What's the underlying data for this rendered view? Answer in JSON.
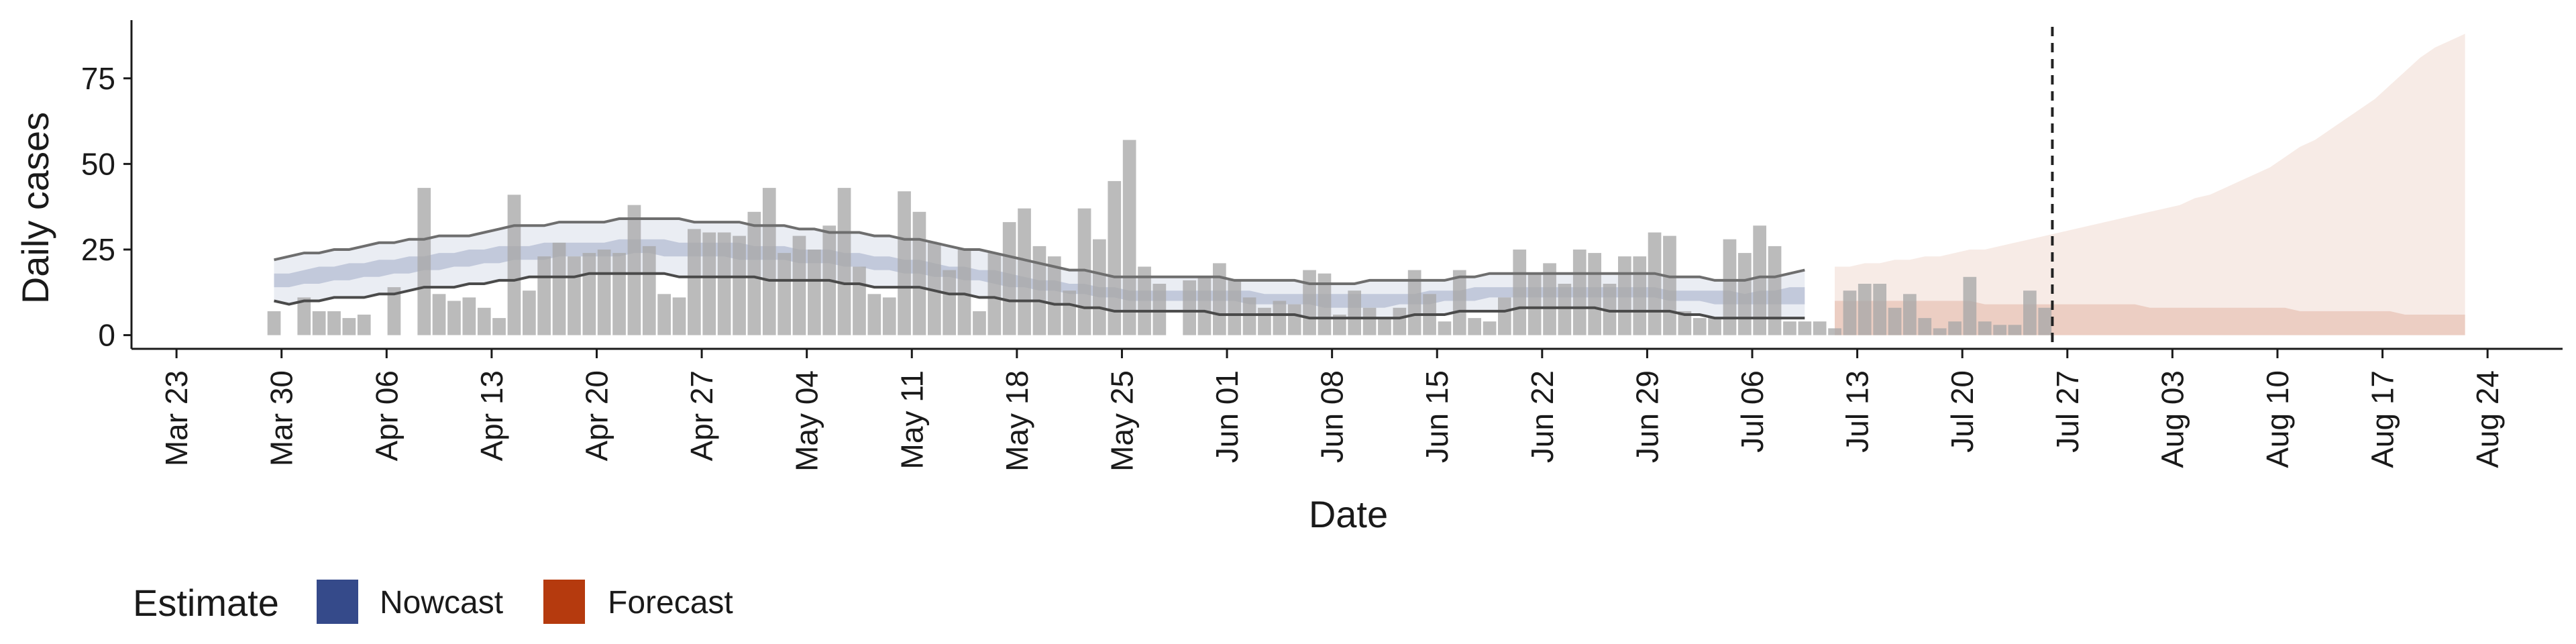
{
  "chart_data": {
    "type": "bar",
    "xlabel": "Date",
    "ylabel": "Daily cases",
    "xlim": [
      "2020-03-20",
      "2020-08-29"
    ],
    "ylim": [
      -4,
      92
    ],
    "y_ticks": [
      0,
      25,
      50,
      75
    ],
    "x_ticks": [
      "2020-03-23",
      "2020-03-30",
      "2020-04-06",
      "2020-04-13",
      "2020-04-20",
      "2020-04-27",
      "2020-05-04",
      "2020-05-11",
      "2020-05-18",
      "2020-05-25",
      "2020-06-01",
      "2020-06-08",
      "2020-06-15",
      "2020-06-22",
      "2020-06-29",
      "2020-07-06",
      "2020-07-13",
      "2020-07-20",
      "2020-07-27",
      "2020-08-03",
      "2020-08-10",
      "2020-08-17",
      "2020-08-24"
    ],
    "x_tick_labels": [
      "Mar 23",
      "Mar 30",
      "Apr 06",
      "Apr 13",
      "Apr 20",
      "Apr 27",
      "May 04",
      "May 11",
      "May 18",
      "May 25",
      "Jun 01",
      "Jun 08",
      "Jun 15",
      "Jun 22",
      "Jun 29",
      "Jul 06",
      "Jul 13",
      "Jul 20",
      "Jul 27",
      "Aug 03",
      "Aug 10",
      "Aug 17",
      "Aug 24"
    ],
    "grid": false,
    "legend": {
      "title": "Estimate",
      "position": "bottom-left",
      "entries": [
        {
          "name": "Nowcast",
          "color": "#354a8a"
        },
        {
          "name": "Forecast",
          "color": "#b53a0e"
        }
      ]
    },
    "reference_line": {
      "date": "2020-07-26",
      "style": "dashed",
      "color": "#222222"
    },
    "bars": {
      "start_date": "2020-03-29",
      "color": "#a8a8a8",
      "values": [
        7,
        0,
        11,
        7,
        7,
        5,
        6,
        0,
        14,
        0,
        43,
        12,
        10,
        11,
        8,
        5,
        41,
        13,
        23,
        27,
        23,
        24,
        25,
        24,
        38,
        26,
        12,
        11,
        31,
        30,
        30,
        29,
        36,
        43,
        24,
        29,
        25,
        32,
        43,
        20,
        12,
        11,
        42,
        36,
        27,
        19,
        25,
        7,
        24,
        33,
        37,
        26,
        23,
        13,
        37,
        28,
        45,
        57,
        20,
        15,
        0,
        16,
        17,
        21,
        16,
        11,
        8,
        10,
        9,
        19,
        18,
        6,
        13,
        8,
        5,
        8,
        19,
        12,
        4,
        19,
        5,
        4,
        11,
        25,
        18,
        21,
        15,
        25,
        24,
        15,
        23,
        23,
        30,
        29,
        7,
        5,
        5,
        28,
        24,
        32,
        26,
        4,
        4,
        4,
        2,
        13,
        15,
        15,
        8,
        12,
        5,
        2,
        4,
        17,
        4,
        3,
        3,
        13,
        8
      ]
    },
    "nowcast": {
      "start_date": "2020-03-29",
      "end_date": "2020-07-10",
      "color": "#354a8a",
      "outer_low": [
        10,
        9,
        10,
        10,
        11,
        11,
        11,
        12,
        12,
        13,
        14,
        14,
        14,
        15,
        15,
        16,
        16,
        17,
        17,
        17,
        17,
        18,
        18,
        18,
        18,
        18,
        18,
        17,
        17,
        17,
        17,
        17,
        17,
        16,
        16,
        16,
        16,
        16,
        15,
        15,
        14,
        14,
        14,
        14,
        13,
        12,
        12,
        11,
        11,
        10,
        10,
        10,
        9,
        9,
        8,
        8,
        7,
        7,
        7,
        7,
        7,
        7,
        7,
        6,
        6,
        6,
        6,
        6,
        6,
        5,
        5,
        5,
        5,
        5,
        5,
        5,
        6,
        6,
        6,
        7,
        7,
        7,
        7,
        8,
        8,
        8,
        8,
        8,
        8,
        7,
        7,
        7,
        7,
        7,
        6,
        6,
        5,
        5,
        5,
        5,
        5,
        5,
        5
      ],
      "outer_high": [
        22,
        23,
        24,
        24,
        25,
        25,
        26,
        27,
        27,
        28,
        28,
        29,
        29,
        29,
        30,
        31,
        32,
        32,
        32,
        33,
        33,
        33,
        33,
        34,
        34,
        34,
        34,
        34,
        33,
        33,
        33,
        33,
        32,
        32,
        32,
        31,
        31,
        30,
        30,
        30,
        29,
        29,
        28,
        28,
        27,
        26,
        25,
        25,
        24,
        23,
        22,
        21,
        20,
        19,
        19,
        18,
        17,
        17,
        17,
        17,
        17,
        17,
        17,
        17,
        16,
        16,
        16,
        16,
        16,
        15,
        15,
        15,
        15,
        16,
        16,
        16,
        16,
        16,
        16,
        17,
        17,
        18,
        18,
        18,
        18,
        18,
        18,
        18,
        18,
        18,
        18,
        18,
        18,
        17,
        17,
        17,
        16,
        16,
        16,
        17,
        17,
        18,
        19
      ],
      "inner_low": [
        14,
        14,
        15,
        15,
        16,
        16,
        17,
        17,
        18,
        18,
        19,
        19,
        20,
        20,
        21,
        21,
        22,
        22,
        22,
        23,
        23,
        23,
        23,
        23,
        24,
        24,
        23,
        23,
        23,
        23,
        23,
        22,
        22,
        22,
        22,
        21,
        21,
        21,
        20,
        20,
        19,
        19,
        18,
        18,
        17,
        17,
        16,
        16,
        15,
        14,
        14,
        13,
        13,
        12,
        12,
        11,
        11,
        10,
        10,
        10,
        10,
        10,
        10,
        10,
        10,
        9,
        9,
        9,
        9,
        9,
        8,
        8,
        8,
        8,
        8,
        9,
        9,
        9,
        10,
        10,
        10,
        11,
        11,
        11,
        11,
        11,
        11,
        11,
        11,
        11,
        11,
        11,
        11,
        10,
        10,
        10,
        9,
        9,
        9,
        9,
        9,
        9,
        9
      ],
      "inner_high": [
        18,
        18,
        19,
        20,
        20,
        21,
        21,
        22,
        22,
        23,
        23,
        24,
        24,
        25,
        25,
        26,
        26,
        26,
        27,
        27,
        27,
        27,
        27,
        28,
        28,
        28,
        28,
        27,
        27,
        27,
        27,
        27,
        26,
        26,
        26,
        25,
        25,
        25,
        24,
        24,
        23,
        23,
        22,
        22,
        21,
        20,
        20,
        19,
        19,
        18,
        17,
        16,
        16,
        15,
        15,
        14,
        14,
        13,
        13,
        13,
        13,
        13,
        13,
        13,
        13,
        13,
        12,
        12,
        12,
        12,
        12,
        12,
        12,
        12,
        12,
        12,
        12,
        13,
        13,
        13,
        14,
        14,
        14,
        14,
        14,
        14,
        14,
        14,
        14,
        14,
        14,
        14,
        14,
        13,
        13,
        13,
        13,
        13,
        12,
        13,
        13,
        14,
        14
      ]
    },
    "forecast": {
      "start_date": "2020-07-11",
      "end_date": "2020-08-22",
      "color": "#b53a0e",
      "high": [
        20,
        20,
        21,
        21,
        22,
        22,
        23,
        23,
        24,
        25,
        25,
        26,
        27,
        28,
        29,
        30,
        31,
        32,
        33,
        34,
        35,
        36,
        37,
        38,
        40,
        41,
        43,
        45,
        47,
        49,
        52,
        55,
        57,
        60,
        63,
        66,
        69,
        73,
        77,
        81,
        84,
        86,
        88
      ],
      "low": [
        0,
        0,
        0,
        0,
        0,
        0,
        0,
        0,
        0,
        0,
        0,
        0,
        0,
        0,
        0,
        0,
        0,
        0,
        0,
        0,
        0,
        0,
        0,
        0,
        0,
        0,
        0,
        0,
        0,
        0,
        0,
        0,
        0,
        0,
        0,
        0,
        0,
        0,
        0,
        0,
        0,
        0,
        0
      ],
      "mid_high": [
        10,
        10,
        10,
        10,
        10,
        10,
        10,
        10,
        10,
        10,
        9,
        9,
        9,
        9,
        9,
        9,
        9,
        9,
        9,
        9,
        9,
        8,
        8,
        8,
        8,
        8,
        8,
        8,
        8,
        8,
        8,
        7,
        7,
        7,
        7,
        7,
        7,
        7,
        6,
        6,
        6,
        6,
        6
      ]
    }
  }
}
